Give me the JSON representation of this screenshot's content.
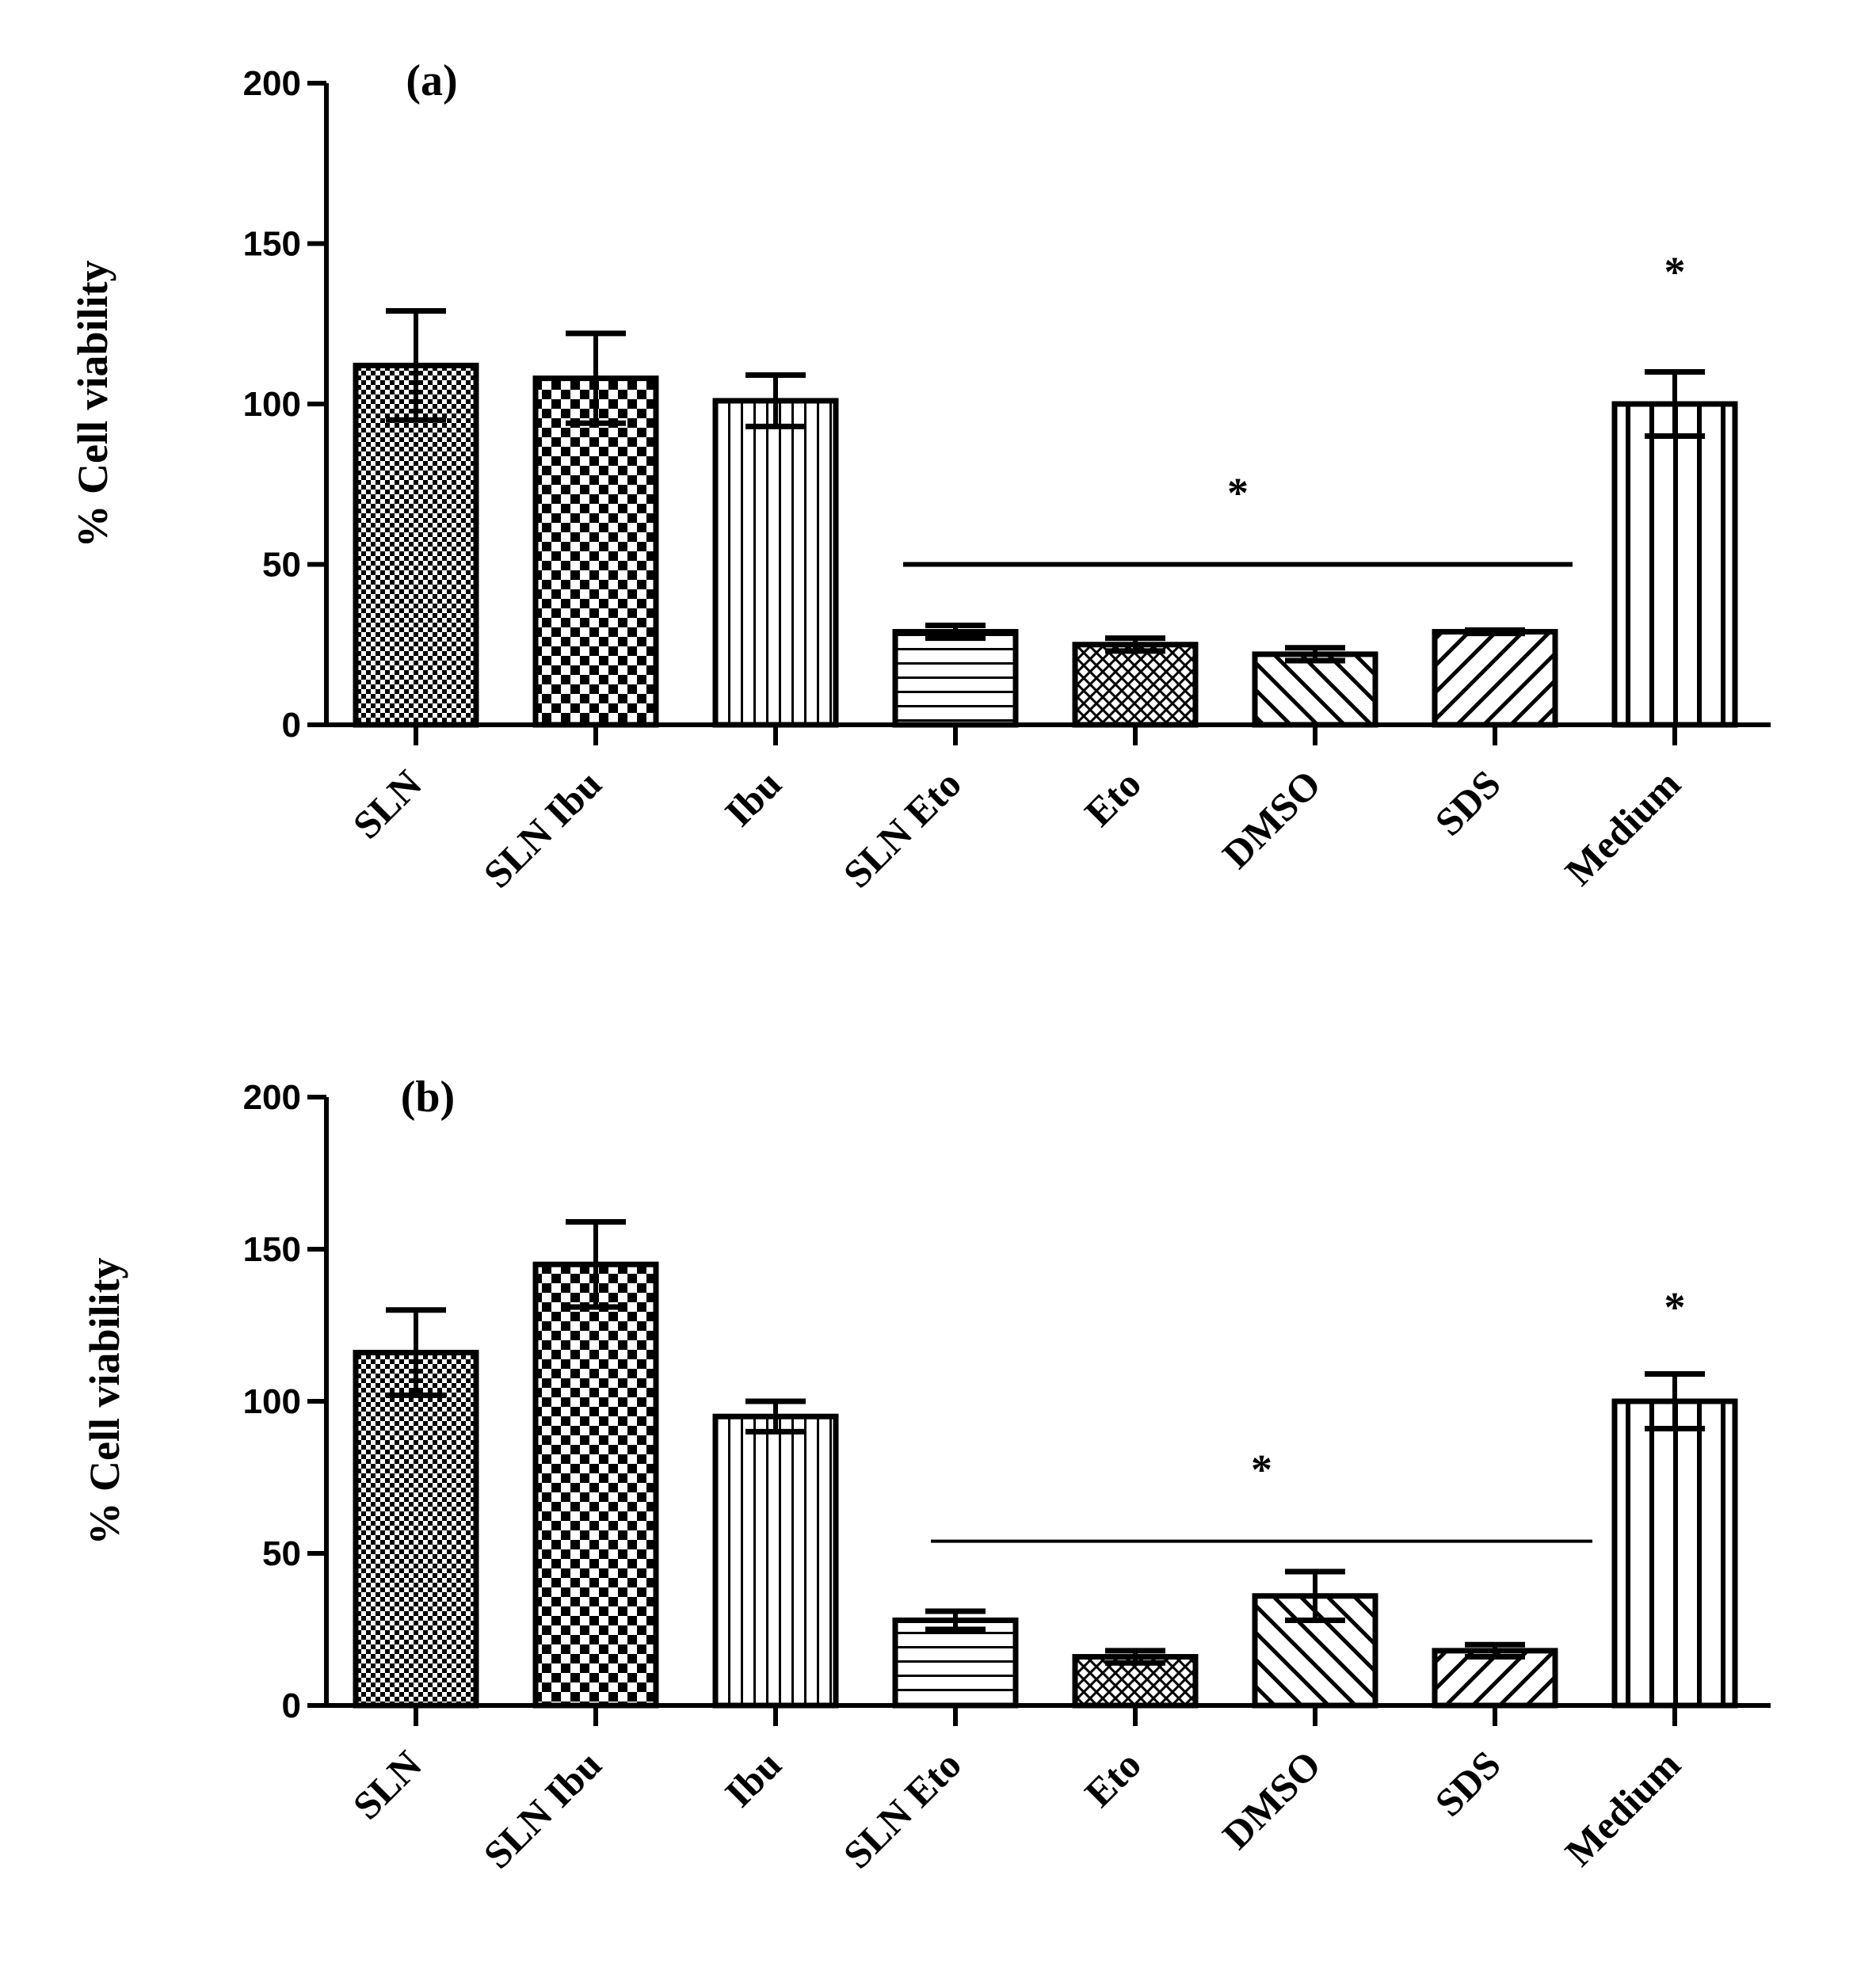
{
  "chart_data": [
    {
      "type": "bar",
      "panel_label": "(a)",
      "ylabel": "% Cell viability",
      "xlabel": "",
      "ylim": [
        0,
        200
      ],
      "yticks": [
        "0",
        "50",
        "100",
        "150",
        "200"
      ],
      "categories": [
        "SLN",
        "SLN Ibu",
        "Ibu",
        "SLN Eto",
        "Eto",
        "DMSO",
        "SDS",
        "Medium"
      ],
      "values": [
        112,
        108,
        101,
        29,
        25,
        22,
        29,
        100
      ],
      "errors": [
        17,
        14,
        8,
        2,
        2,
        2,
        0.5,
        10
      ],
      "patterns": [
        "fine-check",
        "check",
        "vlines",
        "hlines",
        "crosshatch",
        "diag-back",
        "diag-fwd",
        "vlines-wide"
      ],
      "annotations": [
        {
          "text": "*",
          "target": "Medium"
        },
        {
          "text": "*",
          "target": "SLN Eto to SDS bracket",
          "bracket_value": 50
        }
      ]
    },
    {
      "type": "bar",
      "panel_label": "(b)",
      "ylabel": "% Cell viability",
      "xlabel": "",
      "ylim": [
        0,
        200
      ],
      "yticks": [
        "0",
        "50",
        "100",
        "150",
        "200"
      ],
      "categories": [
        "SLN",
        "SLN Ibu",
        "Ibu",
        "SLN Eto",
        "Eto",
        "DMSO",
        "SDS",
        "Medium"
      ],
      "values": [
        116,
        145,
        95,
        28,
        16,
        36,
        18,
        100
      ],
      "errors": [
        14,
        14,
        5,
        3,
        2,
        8,
        2,
        9
      ],
      "patterns": [
        "fine-check",
        "check",
        "vlines",
        "hlines",
        "crosshatch",
        "diag-back",
        "diag-fwd",
        "vlines-wide"
      ],
      "annotations": [
        {
          "text": "*",
          "target": "Medium"
        },
        {
          "text": "*",
          "target": "SLN Eto to SDS bracket",
          "bracket_value": 54
        }
      ]
    }
  ]
}
